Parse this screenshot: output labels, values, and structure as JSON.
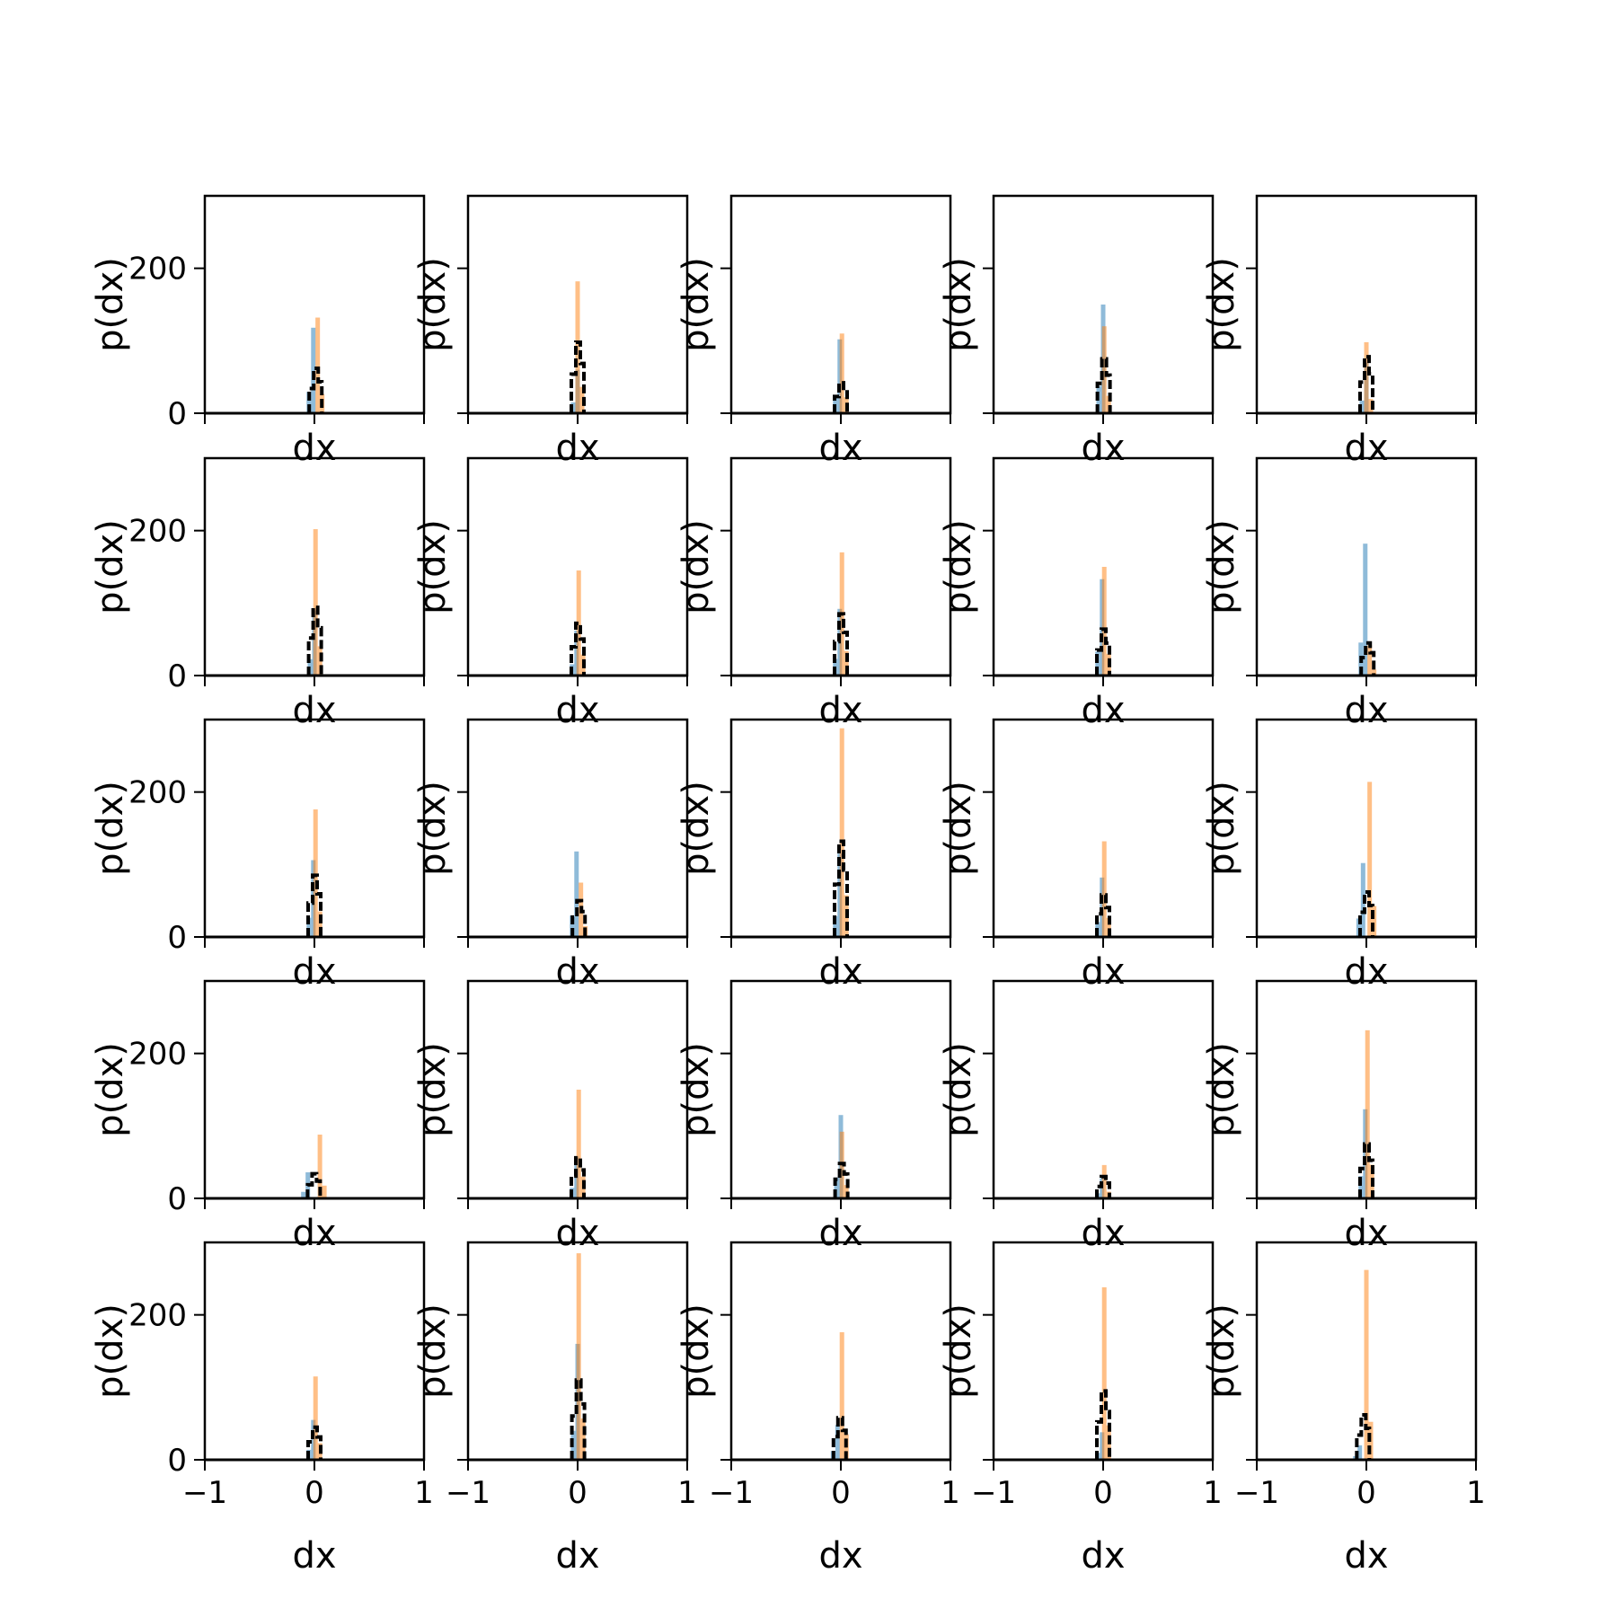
{
  "colors": {
    "series_blue": "#1f77b4",
    "series_orange": "#ff7f0e",
    "series_black": "#000000",
    "frame": "#000000"
  },
  "chart_data": {
    "type": "histogram-grid",
    "rows": 5,
    "cols": 5,
    "xlabel": "dx",
    "ylabel": "p(dx)",
    "xlim": [
      -1,
      1
    ],
    "ylim": [
      0,
      300
    ],
    "xticks": [
      -1,
      0,
      1
    ],
    "xtick_labels": [
      "−1",
      "0",
      "1"
    ],
    "yticks": [
      0,
      200
    ],
    "ytick_labels": [
      "0",
      "200"
    ],
    "grid": false,
    "legend": "none",
    "series": [
      {
        "style": "filled step, alpha 0.5",
        "color": "blue"
      },
      {
        "style": "filled step, alpha 0.5",
        "color": "orange"
      },
      {
        "style": "dashed step outline",
        "color": "black"
      }
    ],
    "panels": [
      {
        "row": 1,
        "col": 1,
        "blue_x": -0.01,
        "blue_peak": 118,
        "orange_x": 0.03,
        "orange_peak": 132,
        "black_peak": 62
      },
      {
        "row": 1,
        "col": 2,
        "blue_x": 0.0,
        "blue_peak": 60,
        "orange_x": 0.0,
        "orange_peak": 182,
        "black_peak": 98
      },
      {
        "row": 1,
        "col": 2,
        "note_skip": true
      },
      {
        "row": 1,
        "col": 3,
        "blue_x": -0.01,
        "blue_peak": 102,
        "orange_x": 0.01,
        "orange_peak": 110,
        "black_peak": 42
      },
      {
        "row": 1,
        "col": 4,
        "blue_x": 0.0,
        "blue_peak": 150,
        "orange_x": 0.01,
        "orange_peak": 120,
        "black_peak": 75
      },
      {
        "row": 1,
        "col": 5,
        "blue_x": 0.0,
        "blue_peak": 70,
        "orange_x": 0.0,
        "orange_peak": 98,
        "black_peak": 78
      },
      {
        "row": 2,
        "col": 1,
        "blue_x": 0.0,
        "blue_peak": 90,
        "orange_x": 0.01,
        "orange_peak": 202,
        "black_peak": 94
      },
      {
        "row": 2,
        "col": 2,
        "blue_x": -0.01,
        "blue_peak": 62,
        "orange_x": 0.01,
        "orange_peak": 145,
        "black_peak": 72
      },
      {
        "row": 2,
        "col": 3,
        "blue_x": -0.01,
        "blue_peak": 92,
        "orange_x": 0.01,
        "orange_peak": 170,
        "black_peak": 85
      },
      {
        "row": 2,
        "col": 4,
        "blue_x": -0.01,
        "blue_peak": 133,
        "orange_x": 0.01,
        "orange_peak": 150,
        "black_peak": 64
      },
      {
        "row": 2,
        "col": 5,
        "blue_x": -0.01,
        "blue_peak": 182,
        "orange_x": 0.03,
        "orange_peak": 42,
        "black_peak": 45
      },
      {
        "row": 3,
        "col": 1,
        "blue_x": -0.01,
        "blue_peak": 106,
        "orange_x": 0.01,
        "orange_peak": 176,
        "black_peak": 85
      },
      {
        "row": 3,
        "col": 2,
        "blue_x": -0.01,
        "blue_peak": 118,
        "orange_x": 0.03,
        "orange_peak": 75,
        "black_peak": 50
      },
      {
        "row": 3,
        "col": 3,
        "blue_x": -0.01,
        "blue_peak": 115,
        "orange_x": 0.01,
        "orange_peak": 288,
        "black_peak": 132
      },
      {
        "row": 3,
        "col": 4,
        "blue_x": -0.01,
        "blue_peak": 82,
        "orange_x": 0.01,
        "orange_peak": 132,
        "black_peak": 58
      },
      {
        "row": 3,
        "col": 5,
        "blue_x": -0.03,
        "blue_peak": 102,
        "orange_x": 0.03,
        "orange_peak": 214,
        "black_peak": 62
      },
      {
        "row": 4,
        "col": 1,
        "blue_x": -0.06,
        "blue_peak": 36,
        "orange_x": 0.05,
        "orange_peak": 88,
        "black_peak": 34
      },
      {
        "row": 4,
        "col": 2,
        "blue_x": -0.01,
        "blue_peak": 58,
        "orange_x": 0.01,
        "orange_peak": 150,
        "black_peak": 56
      },
      {
        "row": 4,
        "col": 3,
        "blue_x": 0.0,
        "blue_peak": 115,
        "orange_x": 0.01,
        "orange_peak": 92,
        "black_peak": 48
      },
      {
        "row": 4,
        "col": 4,
        "blue_x": -0.01,
        "blue_peak": 28,
        "orange_x": 0.01,
        "orange_peak": 46,
        "black_peak": 30
      },
      {
        "row": 4,
        "col": 5,
        "blue_x": -0.01,
        "blue_peak": 123,
        "orange_x": 0.01,
        "orange_peak": 232,
        "black_peak": 75
      },
      {
        "row": 5,
        "col": 1,
        "blue_x": -0.01,
        "blue_peak": 55,
        "orange_x": 0.01,
        "orange_peak": 115,
        "black_peak": 45
      },
      {
        "row": 5,
        "col": 2,
        "blue_x": 0.0,
        "blue_peak": 160,
        "orange_x": 0.01,
        "orange_peak": 285,
        "black_peak": 110
      },
      {
        "row": 5,
        "col": 3,
        "blue_x": -0.03,
        "blue_peak": 48,
        "orange_x": 0.01,
        "orange_peak": 176,
        "black_peak": 58
      },
      {
        "row": 5,
        "col": 4,
        "blue_x": -0.01,
        "blue_peak": 38,
        "orange_x": 0.01,
        "orange_peak": 238,
        "black_peak": 95
      },
      {
        "row": 5,
        "col": 5,
        "blue_x": -0.06,
        "blue_peak": 20,
        "orange_x": 0.0,
        "orange_peak": 262,
        "black_peak": 62
      }
    ]
  }
}
